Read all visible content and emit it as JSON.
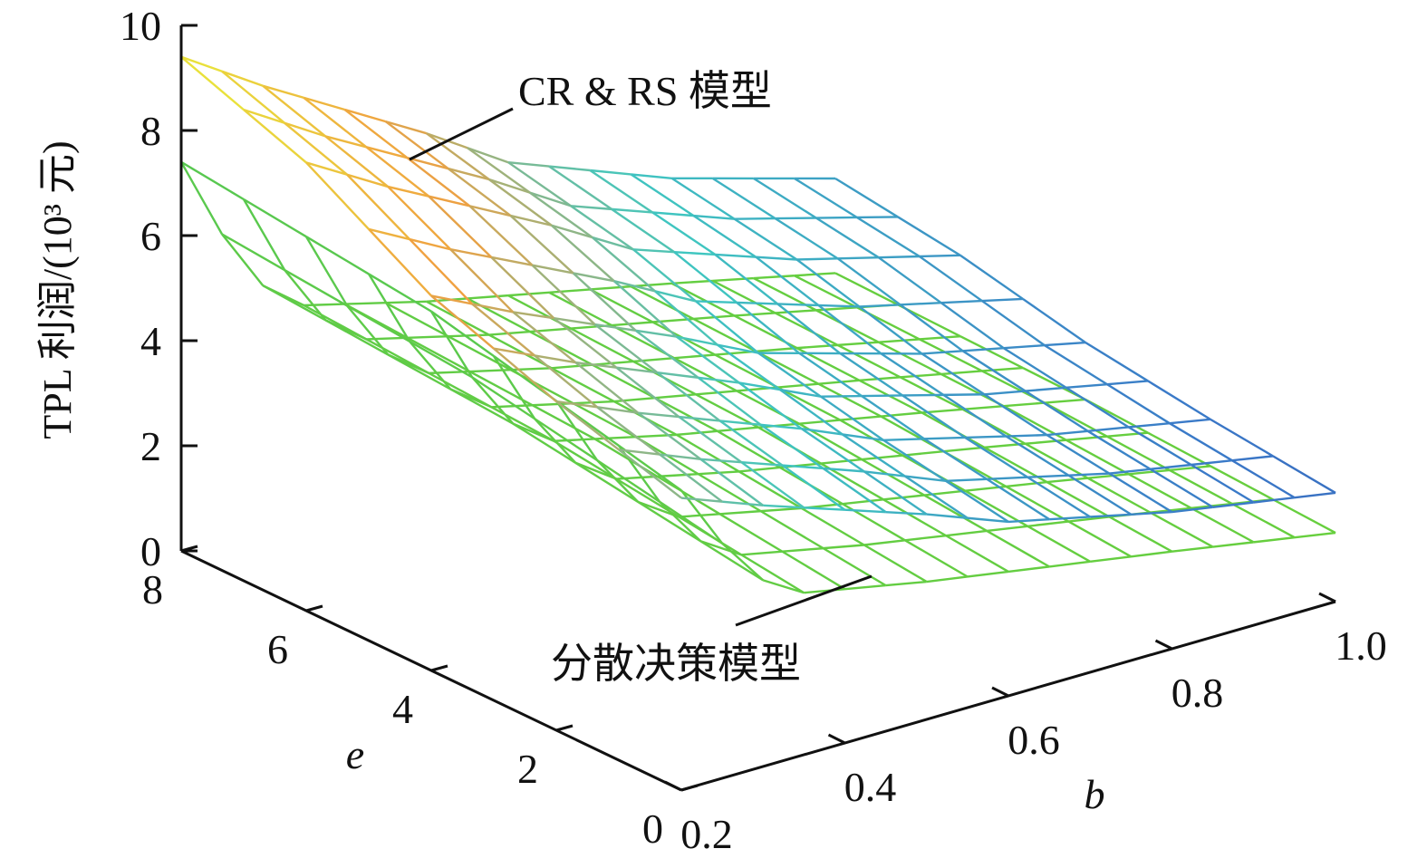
{
  "chart_data": {
    "type": "surface",
    "zlabel": "TPL 利润/(10³ 元)",
    "xlabel": "b",
    "ylabel": "e",
    "xlim": [
      0.2,
      1.0
    ],
    "ylim": [
      0,
      8
    ],
    "zlim": [
      0,
      10
    ],
    "x_ticks": [
      "0.2",
      "0.4",
      "0.6",
      "0.8",
      "1.0"
    ],
    "y_ticks": [
      "0",
      "2",
      "4",
      "6",
      "8"
    ],
    "z_ticks": [
      "0",
      "2",
      "4",
      "6",
      "8",
      "10"
    ],
    "grid": false,
    "b_grid": [
      0.2,
      0.25,
      0.3,
      0.35,
      0.4,
      0.45,
      0.5,
      0.55,
      0.6,
      0.65,
      0.7,
      0.75,
      0.8,
      0.85,
      0.9,
      0.95,
      1.0
    ],
    "e_grid": [
      0,
      1,
      2,
      3,
      4,
      5,
      6,
      7,
      8
    ],
    "series": [
      {
        "name": "CR & RS 模型",
        "colormap": [
          "#2e3a92",
          "#3a78c8",
          "#3fc7c0",
          "#f0a040",
          "#e8e83a"
        ],
        "edge_b_1_0": [
          {
            "e": 0,
            "z": 1.3
          },
          {
            "e": 2,
            "z": 1.7
          },
          {
            "e": 4,
            "z": 2.2
          },
          {
            "e": 6,
            "z": 3.0
          },
          {
            "e": 8,
            "z": 3.5
          }
        ],
        "edge_e_8": [
          {
            "b": 0.2,
            "z": 9.4
          },
          {
            "b": 0.3,
            "z": 8.4
          },
          {
            "b": 0.4,
            "z": 7.5
          },
          {
            "b": 0.5,
            "z": 6.6
          },
          {
            "b": 0.6,
            "z": 5.6
          },
          {
            "b": 0.8,
            "z": 4.4
          },
          {
            "b": 1.0,
            "z": 3.5
          }
        ]
      },
      {
        "name": "分散决策模型",
        "colormap": [
          "#6ad03a",
          "#58c850"
        ],
        "edge_b_1_0": [
          {
            "e": 0,
            "z": 1.1
          },
          {
            "e": 2,
            "z": 1.3
          },
          {
            "e": 4,
            "z": 1.5
          },
          {
            "e": 6,
            "z": 1.6
          },
          {
            "e": 8,
            "z": 1.7
          }
        ],
        "edge_e_8": [
          {
            "b": 0.2,
            "z": 7.4
          },
          {
            "b": 0.25,
            "z": 5.8
          },
          {
            "b": 0.3,
            "z": 4.6
          },
          {
            "b": 0.35,
            "z": 4.0
          },
          {
            "b": 0.5,
            "z": 3.4
          },
          {
            "b": 0.8,
            "z": 2.4
          },
          {
            "b": 1.0,
            "z": 1.7
          }
        ]
      }
    ],
    "annotations": [
      {
        "text": "CR & RS 模型",
        "target_series": "CR & RS 模型"
      },
      {
        "text": "分散决策模型",
        "target_series": "分散决策模型"
      }
    ]
  }
}
